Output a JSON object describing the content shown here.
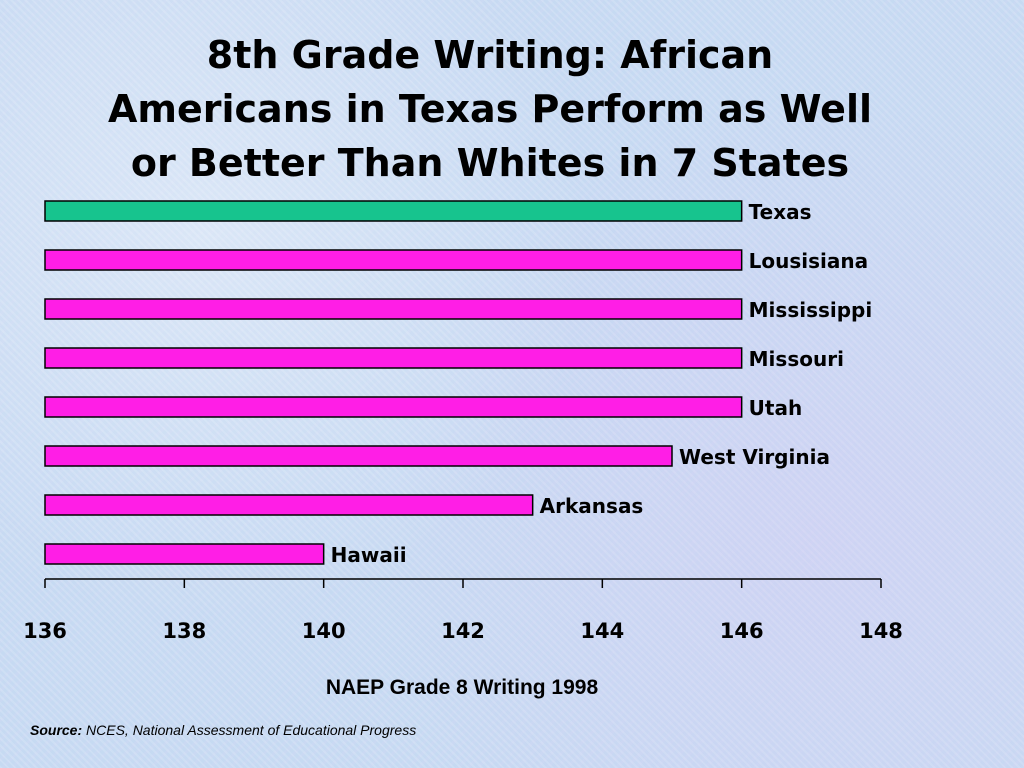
{
  "chart_data": {
    "type": "bar",
    "orientation": "horizontal",
    "title": "8th Grade Writing: African\nAmericans in Texas Perform as Well\nor Better Than Whites in 7 States",
    "categories": [
      "Texas",
      "Lousisiana",
      "Mississippi",
      "Missouri",
      "Utah",
      "West Virginia",
      "Arkansas",
      "Hawaii"
    ],
    "values": [
      146,
      146,
      146,
      146,
      146,
      145,
      143,
      140
    ],
    "bar_colors": [
      "#17c48e",
      "#ff1ee6",
      "#ff1ee6",
      "#ff1ee6",
      "#ff1ee6",
      "#ff1ee6",
      "#ff1ee6",
      "#ff1ee6"
    ],
    "xlim": [
      136,
      148
    ],
    "xticks": [
      "136",
      "138",
      "140",
      "142",
      "144",
      "146",
      "148"
    ],
    "xlabel": "NAEP Grade 8 Writing 1998",
    "ylabel": "",
    "grid": false,
    "legend": "none",
    "data_labels": "category names at bar ends"
  },
  "source": {
    "label": "Source:",
    "text": " NCES, National Assessment of Educational Progress"
  }
}
